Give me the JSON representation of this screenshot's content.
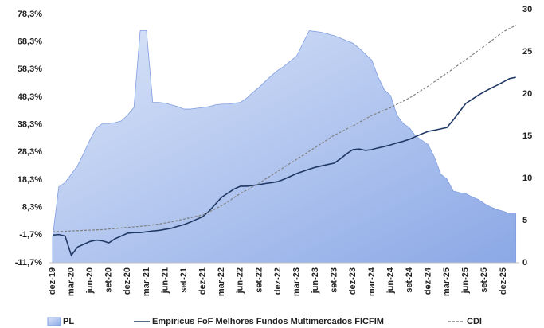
{
  "chart_data": {
    "type": "combo",
    "categories": [
      "dez-19",
      null,
      null,
      "mar-20",
      null,
      null,
      "jun-20",
      null,
      null,
      "set-20",
      null,
      null,
      "dez-20",
      null,
      null,
      "mar-21",
      null,
      null,
      "jun-21",
      null,
      null,
      "set-21",
      null,
      null,
      "dez-21",
      null,
      null,
      "mar-22",
      null,
      null,
      "jun-22",
      null,
      null,
      "set-22",
      null,
      null,
      "dez-22",
      null,
      null,
      "mar-23",
      null,
      null,
      "jun-23",
      null,
      null,
      "set-23",
      null,
      null,
      "dez-23",
      null,
      null,
      "mar-24",
      null,
      null,
      "jun-24",
      null,
      null,
      "set-24",
      null,
      null,
      "dez-24",
      null,
      null,
      "mar-25",
      null,
      null,
      "jun-25",
      null,
      null,
      "set-25",
      null,
      null,
      "dez-25",
      null,
      null
    ],
    "series": [
      {
        "name": "PL",
        "type": "area",
        "axis": "y2",
        "color": "#a9bfee",
        "values": [
          3,
          9,
          9.5,
          10.5,
          11.5,
          13,
          14.6,
          16,
          16.5,
          16.5,
          16.6,
          16.8,
          17.5,
          18.4,
          27.5,
          27.5,
          19,
          19,
          18.9,
          18.7,
          18.5,
          18.2,
          18.2,
          18.3,
          18.4,
          18.5,
          18.7,
          18.8,
          18.8,
          18.9,
          19,
          19.5,
          20.2,
          20.8,
          21.5,
          22.2,
          22.8,
          23.3,
          23.9,
          24.5,
          26,
          27.5,
          27.4,
          27.3,
          27.1,
          26.9,
          26.6,
          26.3,
          26,
          25.4,
          24.7,
          24,
          22,
          20.5,
          19.8,
          17.5,
          16.5,
          16,
          15,
          14.5,
          14,
          12.5,
          10.5,
          9.9,
          8.5,
          8.3,
          8.2,
          7.8,
          7.5,
          7,
          6.6,
          6.3,
          6.1,
          5.8,
          5.8
        ]
      },
      {
        "name": "Empiricus FoF Melhores Fundos Multimercados FICFIM",
        "type": "line",
        "color": "#1f3864",
        "values": [
          -1.7,
          -1.5,
          -2,
          -9,
          -6,
          -5,
          -4,
          -3.5,
          -3.8,
          -4.5,
          -3,
          -2,
          -1,
          -0.8,
          -0.8,
          -0.5,
          -0.2,
          0,
          0.4,
          0.8,
          1.5,
          2.1,
          3,
          4,
          5,
          7,
          9.5,
          12,
          13.5,
          15,
          16,
          16,
          16.3,
          16.6,
          17,
          17.3,
          17.7,
          18.6,
          19.6,
          20.6,
          21.4,
          22.2,
          22.9,
          23.4,
          23.9,
          24.4,
          26,
          27.8,
          29.3,
          29.5,
          29,
          29.3,
          29.9,
          30.4,
          31,
          31.7,
          32.3,
          33,
          34,
          35,
          35.9,
          36.3,
          36.8,
          37.3,
          40,
          43,
          46,
          47.5,
          49,
          50.3,
          51.5,
          52.6,
          53.8,
          55,
          55.5
        ]
      },
      {
        "name": "CDI",
        "type": "line",
        "dashed": true,
        "color": "#808080",
        "values": [
          -0.5,
          -0.4,
          -0.3,
          -0.2,
          -0.1,
          0,
          0.1,
          0.2,
          0.3,
          0.5,
          0.7,
          0.9,
          1.1,
          1.3,
          1.5,
          1.7,
          2,
          2.3,
          2.7,
          3.1,
          3.6,
          4.1,
          4.6,
          5.1,
          5.6,
          6.7,
          7.8,
          9,
          10.4,
          11.9,
          13.4,
          14.6,
          15.9,
          17.1,
          18.6,
          20,
          21.5,
          22.9,
          24.4,
          25.8,
          27.2,
          28.7,
          30.1,
          31.6,
          33,
          34.5,
          35.6,
          36.8,
          37.9,
          39.2,
          40.4,
          41.7,
          42.6,
          43.6,
          44.5,
          45.7,
          46.8,
          48,
          49.4,
          50.9,
          52.3,
          53.9,
          55.4,
          57,
          58.6,
          60.3,
          61.9,
          63.5,
          65.2,
          66.8,
          68.5,
          70.3,
          72,
          73.2,
          74.3
        ]
      }
    ],
    "ylim": [
      -11.7,
      78.3
    ],
    "yticks": [
      {
        "value": -11.7,
        "label": "-11,7%"
      },
      {
        "value": -1.7,
        "label": "-1,7%"
      },
      {
        "value": 8.3,
        "label": "8,3%"
      },
      {
        "value": 18.3,
        "label": "18,3%"
      },
      {
        "value": 28.3,
        "label": "28,3%"
      },
      {
        "value": 38.3,
        "label": "38,3%"
      },
      {
        "value": 48.3,
        "label": "48,3%"
      },
      {
        "value": 58.3,
        "label": "58,3%"
      },
      {
        "value": 68.3,
        "label": "68,3%"
      },
      {
        "value": 78.3,
        "label": "78,3%"
      }
    ],
    "y2lim": [
      0,
      30
    ],
    "y2ticks": [
      0,
      5,
      10,
      15,
      20,
      25,
      30
    ],
    "grid": false,
    "legend": "bottom"
  }
}
